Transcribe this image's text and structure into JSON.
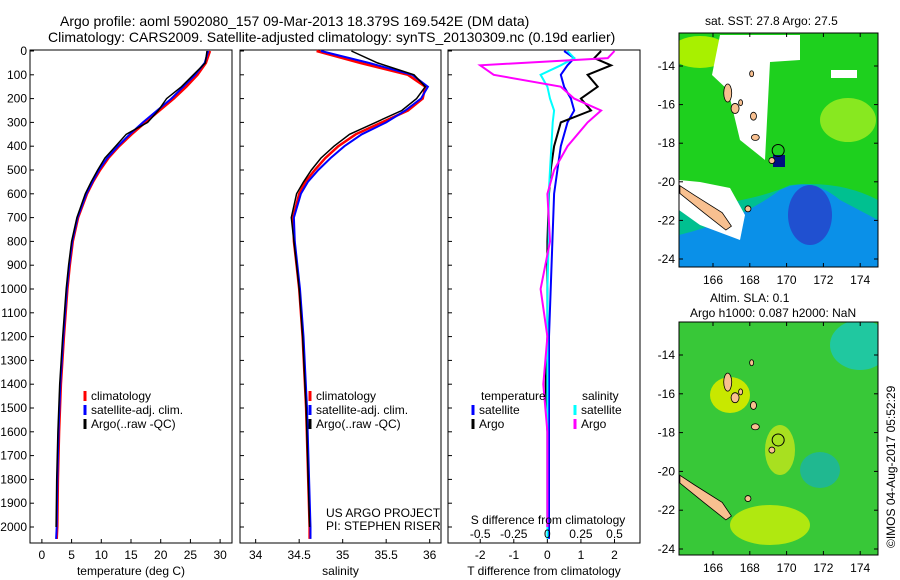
{
  "title": {
    "line1": "Argo profile: aoml 5902080_157 09-Mar-2013 18.379S 169.542E (DM data)",
    "line2": "Climatology: CARS2009. Satellite-adjusted climatology: synTS_20130309.nc (0.19d earlier)"
  },
  "colors": {
    "climatology": "#ff0000",
    "satellite": "#0000ff",
    "argo": "#000000",
    "sal_satellite": "#00ffff",
    "sal_argo": "#ff00ff"
  },
  "chart_data": [
    {
      "type": "line",
      "xlabel": "temperature (deg C)",
      "ylabel": "",
      "xlim": [
        -2,
        32
      ],
      "ylim": [
        2070,
        0
      ],
      "xticks": [
        0,
        5,
        10,
        15,
        20,
        25,
        30
      ],
      "yticks": [
        0,
        100,
        200,
        300,
        400,
        500,
        600,
        700,
        800,
        900,
        1000,
        1100,
        1200,
        1300,
        1400,
        1500,
        1600,
        1700,
        1800,
        1900,
        2000
      ],
      "legend": [
        "climatology",
        "satellite-adj. clim.",
        "Argo(..raw -QC)"
      ],
      "legend_placement": "lower-center",
      "depth": [
        0,
        50,
        100,
        150,
        200,
        250,
        300,
        350,
        400,
        450,
        500,
        550,
        600,
        700,
        800,
        900,
        1000,
        1200,
        1400,
        1600,
        1800,
        2000,
        2050
      ],
      "series": [
        {
          "name": "climatology",
          "values": [
            28.3,
            27.6,
            26.2,
            24.3,
            22.2,
            19.8,
            17.4,
            15.1,
            13.0,
            11.2,
            9.8,
            8.6,
            7.6,
            6.1,
            5.2,
            4.7,
            4.3,
            3.7,
            3.2,
            2.9,
            2.7,
            2.6,
            2.5
          ]
        },
        {
          "name": "satellite-adj. clim.",
          "values": [
            28.0,
            27.4,
            25.8,
            23.8,
            21.8,
            19.4,
            17.0,
            14.8,
            12.8,
            11.0,
            9.6,
            8.5,
            7.5,
            6.0,
            5.1,
            4.6,
            4.2,
            3.6,
            3.1,
            2.8,
            2.6,
            2.5,
            2.4
          ]
        },
        {
          "name": "Argo(..raw -QC)",
          "values": [
            27.8,
            27.5,
            25.5,
            23.5,
            21.0,
            19.6,
            17.8,
            14.2,
            12.4,
            10.6,
            9.4,
            8.3,
            7.3,
            5.9,
            5.0,
            4.5,
            4.1,
            3.5,
            3.0,
            2.7,
            2.5,
            2.4,
            null
          ]
        }
      ]
    },
    {
      "type": "line",
      "xlabel": "salinity",
      "ylabel": "",
      "xlim": [
        33.82,
        36.13
      ],
      "ylim": [
        2070,
        0
      ],
      "xticks": [
        "34",
        "34.5",
        "35",
        "35.5",
        "36"
      ],
      "legend": [
        "climatology",
        "satellite-adj. clim.",
        "Argo(..raw -QC)"
      ],
      "legend_placement": "lower-center",
      "annotation": [
        "US ARGO PROJECT",
        "PI: STEPHEN RISER"
      ],
      "depth": [
        0,
        50,
        100,
        150,
        200,
        250,
        300,
        350,
        400,
        450,
        500,
        550,
        600,
        700,
        800,
        900,
        1000,
        1200,
        1500,
        2000,
        2050
      ],
      "series": [
        {
          "name": "climatology",
          "values": [
            34.7,
            35.2,
            35.75,
            35.95,
            35.92,
            35.75,
            35.45,
            35.15,
            34.95,
            34.8,
            34.68,
            34.57,
            34.5,
            34.43,
            34.44,
            34.47,
            34.5,
            34.54,
            34.58,
            34.62,
            34.62
          ]
        },
        {
          "name": "satellite-adj. clim.",
          "values": [
            34.75,
            35.3,
            35.8,
            35.98,
            35.9,
            35.72,
            35.5,
            35.22,
            35.02,
            34.86,
            34.72,
            34.6,
            34.52,
            34.44,
            34.45,
            34.48,
            34.51,
            34.55,
            34.59,
            34.63,
            34.63
          ]
        },
        {
          "name": "Argo(..raw -QC)",
          "values": [
            35.1,
            35.4,
            35.82,
            35.95,
            35.85,
            35.68,
            35.38,
            35.08,
            34.9,
            34.75,
            34.64,
            34.55,
            34.47,
            34.41,
            34.44,
            34.47,
            34.5,
            34.54,
            34.58,
            34.62,
            null
          ]
        }
      ]
    },
    {
      "type": "line",
      "xlabel": "T difference from climatology",
      "x2label": "S difference from climatology",
      "xlim": [
        -2.96,
        2.76
      ],
      "ylim": [
        2070,
        0
      ],
      "xticks": [
        "-2",
        "-1",
        "0",
        "1",
        "2"
      ],
      "x2ticks": [
        "-0.5",
        "-0.25",
        "0",
        "0.25",
        "0.5"
      ],
      "legend": {
        "temperature": "temperature",
        "salinity": "salinity",
        "items": [
          "satellite",
          "Argo",
          "satellite",
          "Argo"
        ]
      },
      "depth": [
        0,
        30,
        60,
        100,
        150,
        200,
        250,
        300,
        400,
        500,
        600,
        800,
        1000,
        1200,
        1400,
        1600,
        1800,
        2000,
        2050
      ],
      "series": [
        {
          "name": "temperature satellite",
          "values": [
            0.5,
            0.8,
            0.6,
            0.4,
            0.5,
            0.7,
            0.8,
            0.6,
            0.4,
            0.3,
            0.2,
            0.15,
            0.1,
            0.05,
            0.05,
            0.05,
            0.05,
            0.05,
            0.05
          ]
        },
        {
          "name": "temperature Argo",
          "values": [
            1.6,
            1.4,
            1.9,
            1.2,
            1.5,
            1.0,
            1.3,
            0.4,
            0.2,
            0.1,
            0.05,
            0.0,
            0.0,
            0.0,
            -0.05,
            0.0,
            0.0,
            0.0,
            null
          ]
        },
        {
          "name": "salinity satellite",
          "values": [
            0.15,
            0.2,
            0.1,
            -0.05,
            0.0,
            0.02,
            0.05,
            0.04,
            0.03,
            0.02,
            0.01,
            0.01,
            0.0,
            0.0,
            0.0,
            0.0,
            0.0,
            0.0,
            0.0
          ]
        },
        {
          "name": "salinity Argo",
          "values": [
            0.5,
            0.45,
            -0.5,
            -0.4,
            0.1,
            0.2,
            0.4,
            0.3,
            0.15,
            0.05,
            0.0,
            0.02,
            -0.05,
            0.0,
            -0.03,
            0.0,
            0.0,
            0.0,
            null
          ]
        }
      ]
    }
  ],
  "maps": [
    {
      "title": "sat. SST: 27.8 Argo: 27.5",
      "lon_ticks": [
        "166",
        "168",
        "170",
        "172",
        "174"
      ],
      "lat_ticks": [
        "-14",
        "-16",
        "-18",
        "-20",
        "-22",
        "-24"
      ]
    },
    {
      "title1": "Altim. SLA: 0.1",
      "title2": "Argo h1000: 0.087 h2000: NaN",
      "lon_ticks": [
        "166",
        "168",
        "170",
        "172",
        "174"
      ],
      "lat_ticks": [
        "-14",
        "-16",
        "-18",
        "-20",
        "-22",
        "-24"
      ]
    }
  ],
  "footer": "©IMOS 04-Aug-2017 05:52:29"
}
